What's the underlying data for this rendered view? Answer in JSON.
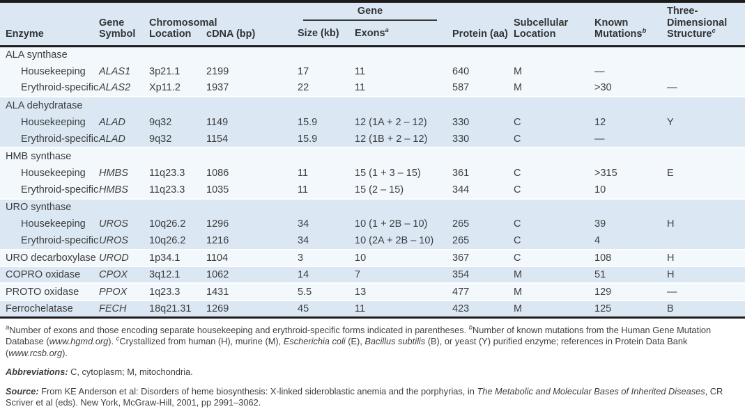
{
  "table": {
    "colors": {
      "band_blue": "#dbe8f4",
      "band_light": "#f3f8fc",
      "border_dark": "#1c1c1c",
      "text": "#3d3d3d"
    },
    "column_keys": [
      "enzyme",
      "gene-symbol",
      "chromosomal-location",
      "cdna-bp",
      "size-kb",
      "exons",
      "protein-aa",
      "subcellular-location",
      "known-mutations",
      "three-dimensional-structure"
    ],
    "header": {
      "enzyme": "Enzyme",
      "gene_symbol": "Gene\nSymbol",
      "chromosomal_location": "Chromosomal\nLocation",
      "cdna": "cDNA (bp)",
      "gene_group": "Gene",
      "size": "Size (kb)",
      "exons": "Exons",
      "exons_sup": "a",
      "protein": "Protein (aa)",
      "subcellular": "Subcellular\nLocation",
      "mutations": "Known\nMutations",
      "mutations_sup": "b",
      "structure": "Three-\nDimensional\nStructure",
      "structure_sup": "c"
    },
    "groups": [
      {
        "label": "ALA synthase",
        "tone": "light",
        "rows": [
          {
            "indent": true,
            "cells": [
              "Housekeeping",
              "ALAS1",
              "3p21.1",
              "2199",
              "17",
              "11",
              "640",
              "M",
              "—",
              ""
            ]
          },
          {
            "indent": true,
            "cells": [
              "Erythroid-specific",
              "ALAS2",
              "Xp11.2",
              "1937",
              "22",
              "11",
              "587",
              "M",
              ">30",
              "—"
            ]
          }
        ]
      },
      {
        "label": "ALA dehydratase",
        "tone": "blue",
        "rows": [
          {
            "indent": true,
            "cells": [
              "Housekeeping",
              "ALAD",
              "9q32",
              "1149",
              "15.9",
              "12 (1A + 2 – 12)",
              "330",
              "C",
              "12",
              "Y"
            ]
          },
          {
            "indent": true,
            "cells": [
              "Erythroid-specific",
              "ALAD",
              "9q32",
              "1154",
              "15.9",
              "12 (1B + 2 – 12)",
              "330",
              "C",
              "—",
              ""
            ]
          }
        ]
      },
      {
        "label": "HMB synthase",
        "tone": "light",
        "rows": [
          {
            "indent": true,
            "cells": [
              "Housekeeping",
              "HMBS",
              "11q23.3",
              "1086",
              "11",
              "15 (1 + 3 – 15)",
              "361",
              "C",
              ">315",
              "E"
            ]
          },
          {
            "indent": true,
            "cells": [
              "Erythroid-specific",
              "HMBS",
              "11q23.3",
              "1035",
              "11",
              "15 (2 – 15)",
              "344",
              "C",
              "10",
              ""
            ]
          }
        ]
      },
      {
        "label": "URO synthase",
        "tone": "blue",
        "rows": [
          {
            "indent": true,
            "cells": [
              "Housekeeping",
              "UROS",
              "10q26.2",
              "1296",
              "34",
              "10 (1 + 2B – 10)",
              "265",
              "C",
              "39",
              "H"
            ]
          },
          {
            "indent": true,
            "cells": [
              "Erythroid-specific",
              "UROS",
              "10q26.2",
              "1216",
              "34",
              "10 (2A + 2B – 10)",
              "265",
              "C",
              "4",
              ""
            ]
          }
        ]
      },
      {
        "label": null,
        "tone": "light",
        "rows": [
          {
            "indent": false,
            "cells": [
              "URO decarboxylase",
              "UROD",
              "1p34.1",
              "1104",
              "3",
              "10",
              "367",
              "C",
              "108",
              "H"
            ]
          }
        ]
      },
      {
        "label": null,
        "tone": "blue",
        "rows": [
          {
            "indent": false,
            "cells": [
              "COPRO oxidase",
              "CPOX",
              "3q12.1",
              "1062",
              "14",
              "7",
              "354",
              "M",
              "51",
              "H"
            ]
          }
        ]
      },
      {
        "label": null,
        "tone": "light",
        "rows": [
          {
            "indent": false,
            "cells": [
              "PROTO oxidase",
              "PPOX",
              "1q23.3",
              "1431",
              "5.5",
              "13",
              "477",
              "M",
              "129",
              "—"
            ]
          }
        ]
      },
      {
        "label": null,
        "tone": "blue",
        "rows": [
          {
            "indent": false,
            "cells": [
              "Ferrochelatase",
              "FECH",
              "18q21.31",
              "1269",
              "45",
              "11",
              "423",
              "M",
              "125",
              "B"
            ]
          }
        ]
      }
    ]
  },
  "footnotes": {
    "a_sup": "a",
    "a_text": "Number of exons and those encoding separate housekeeping and erythroid-specific forms indicated in parentheses.  ",
    "b_sup": "b",
    "b_text1": "Number of known mutations from the Human Gene Mutation Database (",
    "b_link": "www.hgmd.org",
    "b_text2": ").  ",
    "c_sup": "c",
    "c_text1": "Crystallized from human (H), murine (M), ",
    "c_italic1": "Escherichia coli",
    "c_text2": " (E), ",
    "c_italic2": "Bacillus subtilis",
    "c_text3": " (B), or yeast (Y) purified enzyme; references in Protein Data Bank (",
    "c_link": "www.rcsb.org",
    "c_text4": ").",
    "abbreviations_label": "Abbreviations:",
    "abbreviations_text": " C, cytoplasm; M, mitochondria.",
    "source_label": "Source:",
    "source_text1": " From KE Anderson et al: Disorders of heme biosynthesis: X-linked sideroblastic anemia and the porphyrias, in ",
    "source_italic": "The Metabolic and Molecular Bases of Inherited Diseases",
    "source_text2": ", CR Scriver et al (eds). New York, McGraw-Hill, 2001, pp 2991–3062."
  }
}
